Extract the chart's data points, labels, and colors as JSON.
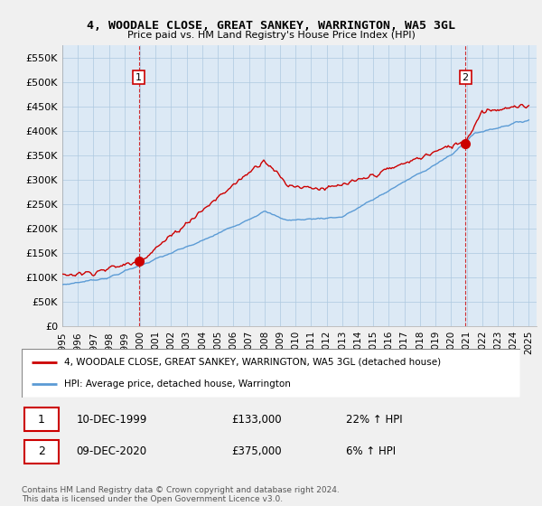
{
  "title": "4, WOODALE CLOSE, GREAT SANKEY, WARRINGTON, WA5 3GL",
  "subtitle": "Price paid vs. HM Land Registry's House Price Index (HPI)",
  "xlim_start": 1995.0,
  "xlim_end": 2025.5,
  "ylim_min": 0,
  "ylim_max": 575000,
  "yticks": [
    0,
    50000,
    100000,
    150000,
    200000,
    250000,
    300000,
    350000,
    400000,
    450000,
    500000,
    550000
  ],
  "ytick_labels": [
    "£0",
    "£50K",
    "£100K",
    "£150K",
    "£200K",
    "£250K",
    "£300K",
    "£350K",
    "£400K",
    "£450K",
    "£500K",
    "£550K"
  ],
  "bg_color": "#f0f0f0",
  "plot_bg_color": "#dce9f5",
  "red_line_color": "#cc0000",
  "blue_line_color": "#5b9bd5",
  "sale1_year": 1999.92,
  "sale1_price": 133000,
  "sale2_year": 2020.92,
  "sale2_price": 375000,
  "legend_label_red": "4, WOODALE CLOSE, GREAT SANKEY, WARRINGTON, WA5 3GL (detached house)",
  "legend_label_blue": "HPI: Average price, detached house, Warrington",
  "annotation1_date": "10-DEC-1999",
  "annotation1_price": "£133,000",
  "annotation1_hpi": "22% ↑ HPI",
  "annotation2_date": "09-DEC-2020",
  "annotation2_price": "£375,000",
  "annotation2_hpi": "6% ↑ HPI",
  "footer": "Contains HM Land Registry data © Crown copyright and database right 2024.\nThis data is licensed under the Open Government Licence v3.0.",
  "xtick_years": [
    1995,
    1996,
    1997,
    1998,
    1999,
    2000,
    2001,
    2002,
    2003,
    2004,
    2005,
    2006,
    2007,
    2008,
    2009,
    2010,
    2011,
    2012,
    2013,
    2014,
    2015,
    2016,
    2017,
    2018,
    2019,
    2020,
    2021,
    2022,
    2023,
    2024,
    2025
  ]
}
